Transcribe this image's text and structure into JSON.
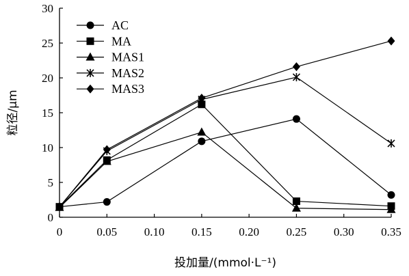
{
  "chart_data": {
    "type": "line",
    "xlabel": "投加量/(mmol·L⁻¹)",
    "ylabel": "粒径/μm",
    "xlim": [
      0,
      0.35
    ],
    "ylim": [
      0,
      30
    ],
    "x_ticks": [
      "0",
      "0.05",
      "0.10",
      "0.15",
      "0.20",
      "0.25",
      "0.30",
      "0.35"
    ],
    "y_ticks": [
      "0",
      "5",
      "10",
      "15",
      "20",
      "25",
      "30"
    ],
    "x": [
      0,
      0.05,
      0.15,
      0.25,
      0.35
    ],
    "legend_position": "top-left",
    "grid": false,
    "series": [
      {
        "name": "AC",
        "marker": "circle",
        "values": [
          1.5,
          2.2,
          10.9,
          14.1,
          3.2
        ]
      },
      {
        "name": "MA",
        "marker": "square",
        "values": [
          1.5,
          8.2,
          16.2,
          2.3,
          1.6
        ]
      },
      {
        "name": "MAS1",
        "marker": "triangle",
        "values": [
          1.4,
          8.0,
          12.2,
          1.3,
          1.1
        ]
      },
      {
        "name": "MAS2",
        "marker": "star",
        "values": [
          1.5,
          9.5,
          16.9,
          20.1,
          10.6
        ]
      },
      {
        "name": "MAS3",
        "marker": "diamond",
        "values": [
          1.5,
          9.7,
          17.1,
          21.6,
          25.3
        ]
      }
    ]
  }
}
